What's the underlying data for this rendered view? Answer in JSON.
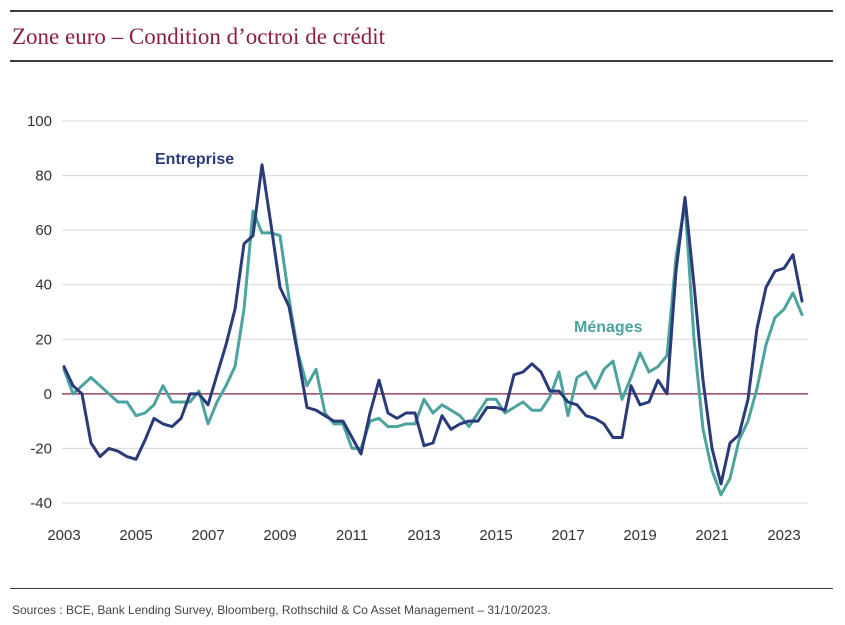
{
  "title": "Zone euro – Condition d’octroi de crédit",
  "source": "Sources : BCE, Bank Lending Survey, Bloomberg, Rothschild & Co Asset Management – 31/10/2023.",
  "colors": {
    "title": "#8b1f3f",
    "entreprise": "#2b3a78",
    "menages": "#4da39e",
    "zero_line": "#8b1f3f",
    "grid": "#d9d9d9"
  },
  "chart_data": {
    "type": "line",
    "title": "Zone euro – Condition d’octroi de crédit",
    "xlabel": "",
    "ylabel": "",
    "xlim": [
      2003,
      2023.75
    ],
    "ylim": [
      -45,
      100
    ],
    "yticks": [
      100,
      80,
      60,
      40,
      20,
      0,
      -20,
      -40
    ],
    "xticks": [
      2003,
      2005,
      2007,
      2009,
      2011,
      2013,
      2015,
      2017,
      2019,
      2021,
      2023
    ],
    "grid": "horizontal",
    "series": [
      {
        "name": "Entreprise",
        "x": [
          2003.0,
          2003.25,
          2003.5,
          2003.75,
          2004.0,
          2004.25,
          2004.5,
          2004.75,
          2005.0,
          2005.25,
          2005.5,
          2005.75,
          2006.0,
          2006.25,
          2006.5,
          2006.75,
          2007.0,
          2007.25,
          2007.5,
          2007.75,
          2008.0,
          2008.25,
          2008.5,
          2008.75,
          2009.0,
          2009.25,
          2009.5,
          2009.75,
          2010.0,
          2010.25,
          2010.5,
          2010.75,
          2011.0,
          2011.25,
          2011.5,
          2011.75,
          2012.0,
          2012.25,
          2012.5,
          2012.75,
          2013.0,
          2013.25,
          2013.5,
          2013.75,
          2014.0,
          2014.25,
          2014.5,
          2014.75,
          2015.0,
          2015.25,
          2015.5,
          2015.75,
          2016.0,
          2016.25,
          2016.5,
          2016.75,
          2017.0,
          2017.25,
          2017.5,
          2017.75,
          2018.0,
          2018.25,
          2018.5,
          2018.75,
          2019.0,
          2019.25,
          2019.5,
          2019.75,
          2020.0,
          2020.25,
          2020.5,
          2020.75,
          2021.0,
          2021.25,
          2021.5,
          2021.75,
          2022.0,
          2022.25,
          2022.5,
          2022.75,
          2023.0,
          2023.25,
          2023.5
        ],
        "values": [
          10,
          3,
          0,
          -18,
          -23,
          -20,
          -21,
          -23,
          -24,
          -17,
          -9,
          -11,
          -12,
          -9,
          0,
          0,
          -4,
          7,
          18,
          31,
          55,
          58,
          84,
          62,
          39,
          32,
          14,
          -5,
          -6,
          -8,
          -10,
          -10,
          -16,
          -22,
          -7,
          5,
          -7,
          -9,
          -7,
          -7,
          -19,
          -18,
          -8,
          -13,
          -11,
          -10,
          -10,
          -5,
          -5,
          -6,
          7,
          8,
          11,
          8,
          1,
          1,
          -3,
          -4,
          -8,
          -9,
          -11,
          -16,
          -16,
          3,
          -4,
          -3,
          5,
          0,
          45,
          72,
          40,
          5,
          -20,
          -33,
          -18,
          -15,
          -2,
          24,
          39,
          45,
          46,
          51,
          34
        ]
      },
      {
        "name": "Ménages",
        "x": [
          2003.0,
          2003.25,
          2003.5,
          2003.75,
          2004.0,
          2004.25,
          2004.5,
          2004.75,
          2005.0,
          2005.25,
          2005.5,
          2005.75,
          2006.0,
          2006.25,
          2006.5,
          2006.75,
          2007.0,
          2007.25,
          2007.5,
          2007.75,
          2008.0,
          2008.25,
          2008.5,
          2008.75,
          2009.0,
          2009.25,
          2009.5,
          2009.75,
          2010.0,
          2010.25,
          2010.5,
          2010.75,
          2011.0,
          2011.25,
          2011.5,
          2011.75,
          2012.0,
          2012.25,
          2012.5,
          2012.75,
          2013.0,
          2013.25,
          2013.5,
          2013.75,
          2014.0,
          2014.25,
          2014.5,
          2014.75,
          2015.0,
          2015.25,
          2015.5,
          2015.75,
          2016.0,
          2016.25,
          2016.5,
          2016.75,
          2017.0,
          2017.25,
          2017.5,
          2017.75,
          2018.0,
          2018.25,
          2018.5,
          2018.75,
          2019.0,
          2019.25,
          2019.5,
          2019.75,
          2020.0,
          2020.25,
          2020.5,
          2020.75,
          2021.0,
          2021.25,
          2021.5,
          2021.75,
          2022.0,
          2022.25,
          2022.5,
          2022.75,
          2023.0,
          2023.25,
          2023.5
        ],
        "values": [
          9,
          0,
          3,
          6,
          3,
          0,
          -3,
          -3,
          -8,
          -7,
          -4,
          3,
          -3,
          -3,
          -3,
          1,
          -11,
          -3,
          3,
          10,
          31,
          67,
          59,
          59,
          58,
          35,
          15,
          3,
          9,
          -7,
          -11,
          -11,
          -20,
          -20,
          -10,
          -9,
          -12,
          -12,
          -11,
          -11,
          -2,
          -7,
          -4,
          -6,
          -8,
          -12,
          -7,
          -2,
          -2,
          -7,
          -5,
          -3,
          -6,
          -6,
          -1,
          8,
          -8,
          6,
          8,
          2,
          9,
          12,
          -2,
          6,
          15,
          8,
          10,
          14,
          50,
          70,
          20,
          -13,
          -28,
          -37,
          -31,
          -17,
          -10,
          2,
          18,
          28,
          31,
          37,
          29
        ]
      }
    ],
    "annotations": [
      {
        "text": "Entreprise",
        "series": "Entreprise"
      },
      {
        "text": "Ménages",
        "series": "Ménages"
      }
    ]
  }
}
